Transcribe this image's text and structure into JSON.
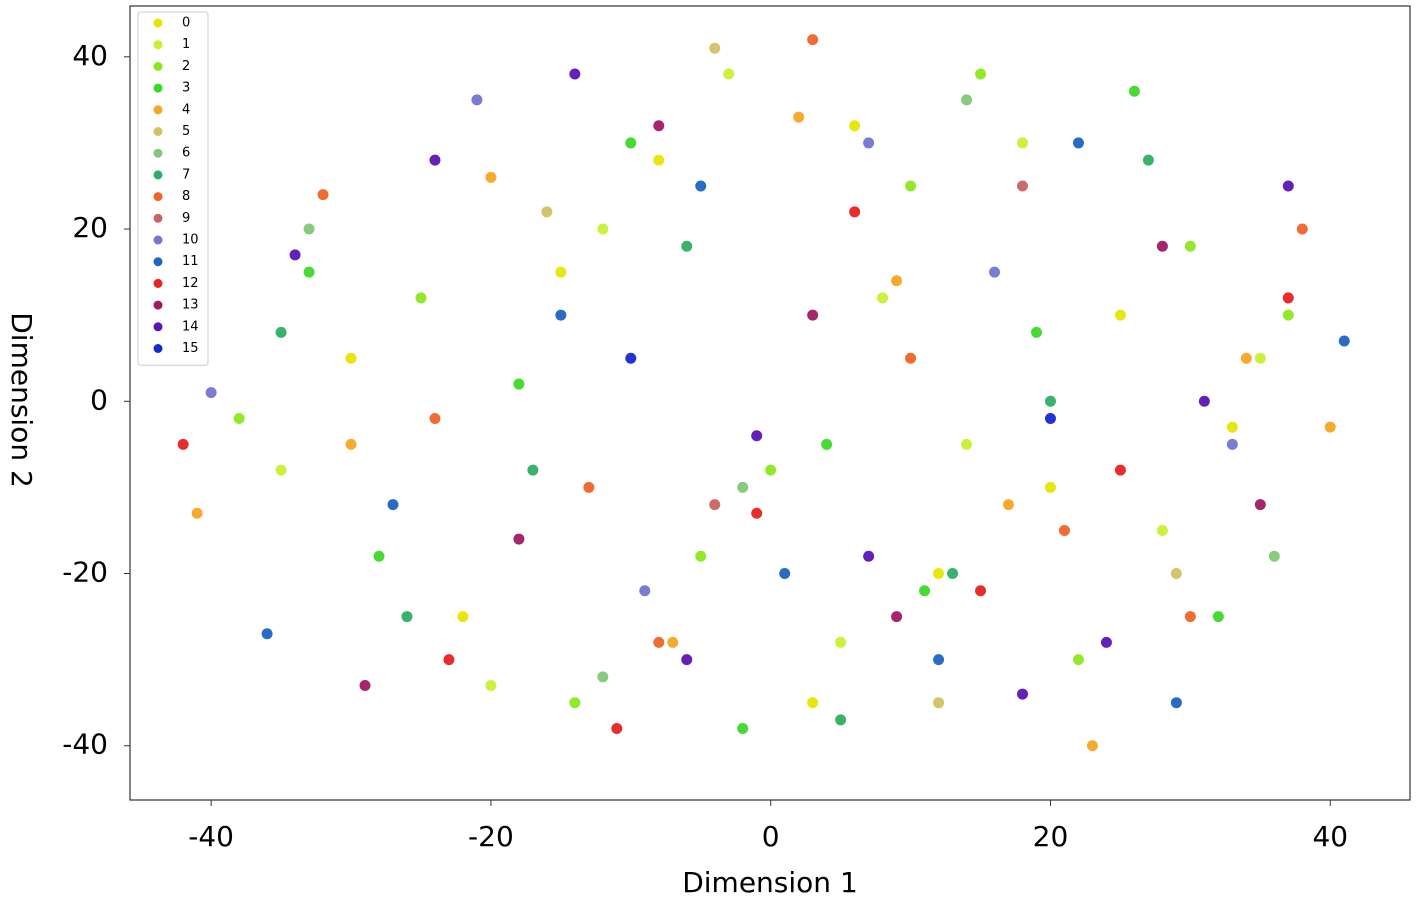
{
  "chart_data": {
    "type": "scatter",
    "xlabel": "Dimension 1",
    "ylabel": "Dimension 2",
    "xlim": [
      -45.8,
      45.7
    ],
    "ylim": [
      -46.3,
      45.9
    ],
    "xticks": [
      -40,
      -20,
      0,
      20,
      40
    ],
    "yticks": [
      -40,
      -20,
      0,
      20,
      40
    ],
    "legend": "upper left",
    "series": [
      {
        "name": "0",
        "color": "#e6e600",
        "x": [
          -30,
          12,
          25,
          -8,
          3,
          33,
          -15,
          20,
          -22,
          6
        ],
        "y": [
          5,
          -20,
          10,
          28,
          -35,
          -3,
          15,
          -10,
          -25,
          32
        ]
      },
      {
        "name": "1",
        "color": "#c8f032",
        "x": [
          -35,
          -12,
          5,
          18,
          28,
          -20,
          8,
          -3,
          35,
          14
        ],
        "y": [
          -8,
          20,
          -28,
          30,
          -15,
          -33,
          12,
          38,
          5,
          -5
        ]
      },
      {
        "name": "2",
        "color": "#8ce81e",
        "x": [
          -25,
          -5,
          10,
          22,
          30,
          -38,
          0,
          15,
          -14,
          37
        ],
        "y": [
          12,
          -18,
          25,
          -30,
          18,
          -2,
          -8,
          38,
          -35,
          10
        ]
      },
      {
        "name": "3",
        "color": "#3cd828",
        "x": [
          -28,
          -10,
          4,
          19,
          32,
          -18,
          26,
          -2,
          11,
          -33
        ],
        "y": [
          -18,
          30,
          -5,
          8,
          -25,
          2,
          36,
          -38,
          -22,
          15
        ]
      },
      {
        "name": "4",
        "color": "#f5a623",
        "x": [
          -41,
          -20,
          2,
          17,
          34,
          -7,
          23,
          9,
          -30,
          40
        ],
        "y": [
          -13,
          26,
          33,
          -12,
          5,
          -28,
          -40,
          14,
          -5,
          -3
        ]
      },
      {
        "name": "5",
        "color": "#d2c264",
        "x": [
          -16,
          12,
          29,
          -4
        ],
        "y": [
          22,
          -35,
          -20,
          41
        ]
      },
      {
        "name": "6",
        "color": "#82c878",
        "x": [
          -33,
          -12,
          14,
          36,
          -2
        ],
        "y": [
          20,
          -32,
          35,
          -18,
          -10
        ]
      },
      {
        "name": "7",
        "color": "#2eae64",
        "x": [
          -26,
          -6,
          13,
          27,
          -35,
          5,
          20,
          -17
        ],
        "y": [
          -25,
          18,
          -20,
          28,
          8,
          -37,
          0,
          -8
        ]
      },
      {
        "name": "8",
        "color": "#f06428",
        "x": [
          -32,
          -13,
          3,
          21,
          38,
          -8,
          10,
          -24,
          30
        ],
        "y": [
          24,
          -10,
          42,
          -15,
          20,
          -28,
          5,
          -2,
          -25
        ]
      },
      {
        "name": "9",
        "color": "#c86464",
        "x": [
          -4,
          18
        ],
        "y": [
          -12,
          25
        ]
      },
      {
        "name": "10",
        "color": "#7474d2",
        "x": [
          -40,
          -9,
          16,
          33,
          -21,
          7
        ],
        "y": [
          1,
          -22,
          15,
          -5,
          35,
          30
        ]
      },
      {
        "name": "11",
        "color": "#1e64c0",
        "x": [
          -36,
          -15,
          1,
          22,
          41,
          -27,
          12,
          -5,
          29
        ],
        "y": [
          -27,
          10,
          -20,
          30,
          7,
          -12,
          -30,
          25,
          -35
        ]
      },
      {
        "name": "12",
        "color": "#e82222",
        "x": [
          -42,
          -11,
          6,
          25,
          37,
          -23,
          -1,
          15
        ],
        "y": [
          -5,
          -38,
          22,
          -8,
          12,
          -30,
          -13,
          -22
        ]
      },
      {
        "name": "13",
        "color": "#a01a64",
        "x": [
          -29,
          -8,
          9,
          28,
          -18,
          3,
          35
        ],
        "y": [
          -33,
          32,
          -25,
          18,
          -16,
          10,
          -12
        ]
      },
      {
        "name": "14",
        "color": "#5c14b4",
        "x": [
          -34,
          -14,
          -1,
          18,
          31,
          -24,
          7,
          24,
          -6,
          37
        ],
        "y": [
          17,
          38,
          -4,
          -34,
          0,
          28,
          -18,
          -28,
          -30,
          25
        ]
      },
      {
        "name": "15",
        "color": "#1428d2",
        "x": [
          -10,
          20
        ],
        "y": [
          5,
          -2
        ]
      }
    ]
  }
}
